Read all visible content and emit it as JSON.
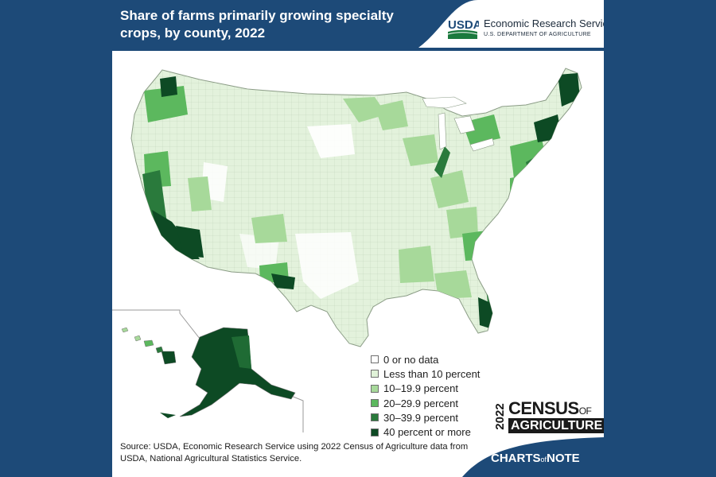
{
  "title": "Share of farms primarily growing specialty crops, by county, 2022",
  "branding": {
    "usda_wordmark": "USDA",
    "agency_name": "Economic Research Service",
    "department": "U.S. DEPARTMENT OF AGRICULTURE"
  },
  "legend": {
    "items": [
      {
        "label": "0 or no data",
        "color": "#ffffff"
      },
      {
        "label": "Less than 10 percent",
        "color": "#e0f2d8"
      },
      {
        "label": "10–19.9 percent",
        "color": "#a7d99a"
      },
      {
        "label": "20–29.9 percent",
        "color": "#5cb85e"
      },
      {
        "label": "30–39.9 percent",
        "color": "#2a7a3c"
      },
      {
        "label": "40 percent or more",
        "color": "#0d4a24"
      }
    ]
  },
  "census_mark": {
    "year": "2022",
    "line1": "CENSUS",
    "line1_suffix": "OF",
    "line2": "AGRICULTURE"
  },
  "source": "Source: USDA, Economic Research Service using 2022 Census of Agriculture data from USDA, National Agricultural Statistics Service.",
  "charts_note": {
    "prefix": "CHARTS",
    "middle": "of",
    "suffix": "NOTE"
  },
  "colors": {
    "page_background": "#1d4a78",
    "header_banner": "#1d4a78",
    "usda_green": "#1b7a3e",
    "usda_blue": "#1d4a78"
  }
}
